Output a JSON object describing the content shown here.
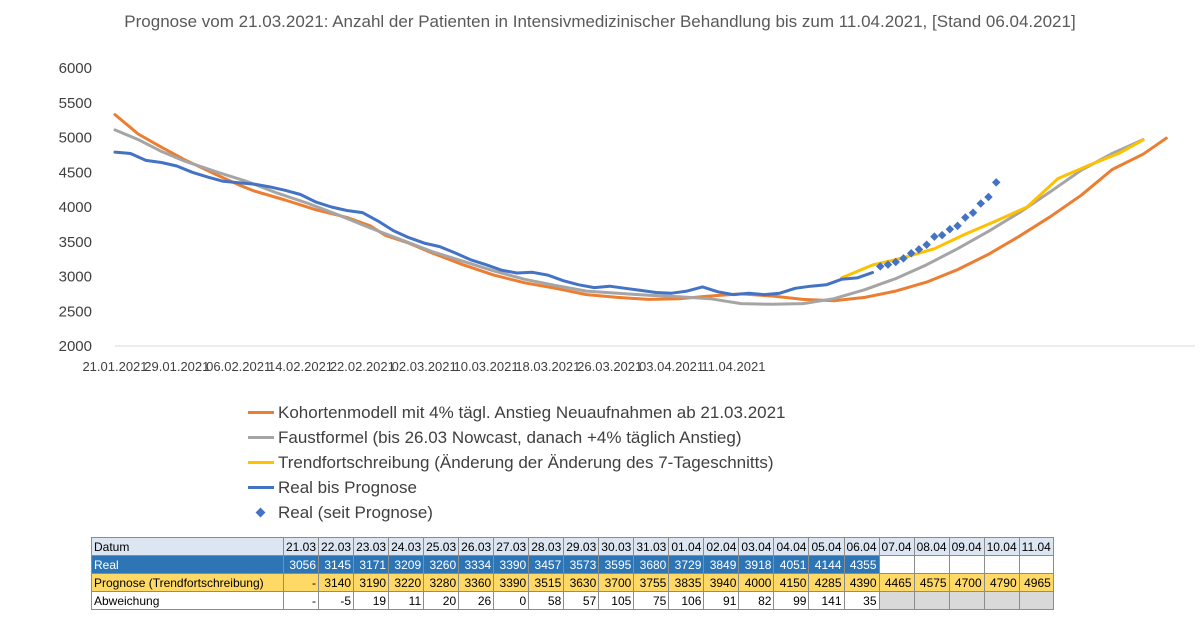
{
  "chart_data": {
    "type": "line",
    "title": "Prognose vom 21.03.2021: Anzahl der Patienten in Intensivmedizinischer  Behandlung bis zum 11.04.2021, [Stand 06.04.2021]",
    "start_date": "21.01.2021",
    "x_tick_labels": [
      "21.01.2021",
      "29.01.2021",
      "06.02.2021",
      "14.02.2021",
      "22.02.2021",
      "02.03.2021",
      "10.03.2021",
      "18.03.2021",
      "26.03.2021",
      "03.04.2021",
      "11.04.2021"
    ],
    "ylim": [
      2000,
      6000
    ],
    "y_ticks": [
      2000,
      2500,
      3000,
      3500,
      4000,
      4500,
      5000,
      5500,
      6000
    ],
    "grid": false,
    "legend_position": "bottom",
    "series": [
      {
        "name": "Kohortenmodell mit 4% tägl. Anstieg Neuaufnahmen ab 21.03.2021",
        "color": "#ed7d31",
        "style": "line",
        "points": [
          [
            0,
            5330
          ],
          [
            3,
            5050
          ],
          [
            6,
            4860
          ],
          [
            9,
            4680
          ],
          [
            13,
            4470
          ],
          [
            16,
            4320
          ],
          [
            18,
            4230
          ],
          [
            22,
            4100
          ],
          [
            26,
            3960
          ],
          [
            30,
            3850
          ],
          [
            33,
            3730
          ],
          [
            35,
            3590
          ],
          [
            38,
            3480
          ],
          [
            41,
            3340
          ],
          [
            45,
            3170
          ],
          [
            49,
            3020
          ],
          [
            53,
            2910
          ],
          [
            57,
            2830
          ],
          [
            61,
            2740
          ],
          [
            65,
            2700
          ],
          [
            69,
            2670
          ],
          [
            73,
            2680
          ],
          [
            77,
            2720
          ],
          [
            81,
            2750
          ],
          [
            85,
            2720
          ],
          [
            89,
            2670
          ],
          [
            93,
            2650
          ],
          [
            97,
            2700
          ],
          [
            101,
            2790
          ],
          [
            105,
            2920
          ],
          [
            109,
            3100
          ],
          [
            113,
            3320
          ],
          [
            117,
            3580
          ],
          [
            121,
            3860
          ],
          [
            125,
            4170
          ],
          [
            129,
            4540
          ],
          [
            133,
            4760
          ],
          [
            136,
            4990
          ]
        ]
      },
      {
        "name": "Faustformel (bis 26.03 Nowcast, danach +4% täglich Anstieg)",
        "color": "#a5a5a5",
        "style": "line",
        "points": [
          [
            0,
            5110
          ],
          [
            3,
            4970
          ],
          [
            6,
            4800
          ],
          [
            9,
            4660
          ],
          [
            13,
            4510
          ],
          [
            17,
            4370
          ],
          [
            21,
            4200
          ],
          [
            25,
            4050
          ],
          [
            29,
            3880
          ],
          [
            33,
            3700
          ],
          [
            37,
            3530
          ],
          [
            41,
            3360
          ],
          [
            45,
            3220
          ],
          [
            49,
            3080
          ],
          [
            53,
            2960
          ],
          [
            57,
            2870
          ],
          [
            61,
            2790
          ],
          [
            65,
            2760
          ],
          [
            69,
            2730
          ],
          [
            73,
            2710
          ],
          [
            77,
            2680
          ],
          [
            81,
            2610
          ],
          [
            85,
            2600
          ],
          [
            89,
            2610
          ],
          [
            93,
            2680
          ],
          [
            97,
            2810
          ],
          [
            101,
            2970
          ],
          [
            105,
            3170
          ],
          [
            109,
            3400
          ],
          [
            113,
            3650
          ],
          [
            117,
            3920
          ],
          [
            121,
            4220
          ],
          [
            125,
            4530
          ],
          [
            129,
            4770
          ],
          [
            133,
            4970
          ]
        ]
      },
      {
        "name": "Trendfortschreibung (Änderung der Änderung des 7-Tageschnitts)",
        "color": "#ffc000",
        "style": "line",
        "points": [
          [
            94,
            2980
          ],
          [
            98,
            3165
          ],
          [
            102,
            3270
          ],
          [
            106,
            3400
          ],
          [
            110,
            3610
          ],
          [
            114,
            3800
          ],
          [
            118,
            4000
          ],
          [
            122,
            4410
          ],
          [
            126,
            4600
          ],
          [
            130,
            4780
          ],
          [
            133,
            4965
          ]
        ]
      },
      {
        "name": "Real bis Prognose",
        "color": "#4472c4",
        "style": "line",
        "points": [
          [
            0,
            4790
          ],
          [
            2,
            4770
          ],
          [
            4,
            4670
          ],
          [
            6,
            4640
          ],
          [
            8,
            4590
          ],
          [
            10,
            4500
          ],
          [
            12,
            4430
          ],
          [
            14,
            4370
          ],
          [
            16,
            4350
          ],
          [
            18,
            4330
          ],
          [
            20,
            4290
          ],
          [
            22,
            4240
          ],
          [
            24,
            4180
          ],
          [
            26,
            4070
          ],
          [
            28,
            4000
          ],
          [
            30,
            3950
          ],
          [
            32,
            3920
          ],
          [
            34,
            3800
          ],
          [
            36,
            3660
          ],
          [
            38,
            3560
          ],
          [
            40,
            3480
          ],
          [
            42,
            3430
          ],
          [
            44,
            3340
          ],
          [
            46,
            3240
          ],
          [
            48,
            3170
          ],
          [
            50,
            3090
          ],
          [
            52,
            3050
          ],
          [
            54,
            3060
          ],
          [
            56,
            3020
          ],
          [
            58,
            2940
          ],
          [
            60,
            2880
          ],
          [
            62,
            2840
          ],
          [
            64,
            2860
          ],
          [
            66,
            2830
          ],
          [
            68,
            2800
          ],
          [
            70,
            2770
          ],
          [
            72,
            2760
          ],
          [
            74,
            2790
          ],
          [
            76,
            2850
          ],
          [
            78,
            2780
          ],
          [
            80,
            2740
          ],
          [
            82,
            2760
          ],
          [
            84,
            2740
          ],
          [
            86,
            2760
          ],
          [
            88,
            2830
          ],
          [
            90,
            2860
          ],
          [
            92,
            2880
          ],
          [
            94,
            2960
          ],
          [
            96,
            2980
          ],
          [
            98,
            3056
          ]
        ]
      },
      {
        "name": "Real (seit Prognose)",
        "color": "#4472c4",
        "style": "markers",
        "points": [
          [
            99,
            3145
          ],
          [
            100,
            3171
          ],
          [
            101,
            3209
          ],
          [
            102,
            3260
          ],
          [
            103,
            3334
          ],
          [
            104,
            3390
          ],
          [
            105,
            3457
          ],
          [
            106,
            3573
          ],
          [
            107,
            3595
          ],
          [
            108,
            3680
          ],
          [
            109,
            3729
          ],
          [
            110,
            3849
          ],
          [
            111,
            3918
          ],
          [
            112,
            4051
          ],
          [
            113,
            4144
          ],
          [
            114,
            4355
          ]
        ]
      }
    ]
  },
  "table": {
    "header_label": "Datum",
    "dates": [
      "21.03",
      "22.03",
      "23.03",
      "24.03",
      "25.03",
      "26.03",
      "27.03",
      "28.03",
      "29.03",
      "30.03",
      "31.03",
      "01.04",
      "02.04",
      "03.04",
      "04.04",
      "05.04",
      "06.04",
      "07.04",
      "08.04",
      "09.04",
      "10.04",
      "11.04"
    ],
    "rows": [
      {
        "label": "Real",
        "values": [
          "3056",
          "3145",
          "3171",
          "3209",
          "3260",
          "3334",
          "3390",
          "3457",
          "3573",
          "3595",
          "3680",
          "3729",
          "3849",
          "3918",
          "4051",
          "4144",
          "4355",
          "",
          "",
          "",
          "",
          ""
        ]
      },
      {
        "label": "Prognose (Trendfortschreibung)",
        "values": [
          "-",
          "3140",
          "3190",
          "3220",
          "3280",
          "3360",
          "3390",
          "3515",
          "3630",
          "3700",
          "3755",
          "3835",
          "3940",
          "4000",
          "4150",
          "4285",
          "4390",
          "4465",
          "4575",
          "4700",
          "4790",
          "4965"
        ]
      },
      {
        "label": "Abweichung",
        "values": [
          "-",
          "-5",
          "19",
          "11",
          "20",
          "26",
          "0",
          "58",
          "57",
          "105",
          "75",
          "106",
          "91",
          "82",
          "99",
          "141",
          "35",
          "",
          "",
          "",
          "",
          ""
        ]
      }
    ]
  }
}
